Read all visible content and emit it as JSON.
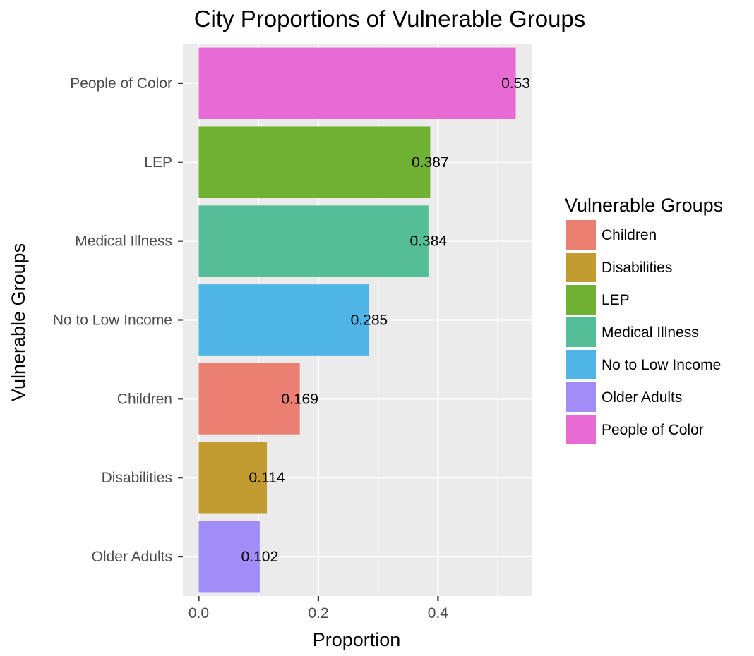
{
  "chart_data": {
    "type": "bar",
    "orientation": "horizontal",
    "title": "City Proportions of Vulnerable Groups",
    "xlabel": "Proportion",
    "ylabel": "Vulnerable Groups",
    "xlim": [
      -0.0265,
      0.5565
    ],
    "x_ticks": [
      "0.0",
      "0.2",
      "0.4"
    ],
    "x_tick_values": [
      0,
      0.2,
      0.4
    ],
    "grid": true,
    "panel_background": "#ebebeb",
    "categories": [
      "People of Color",
      "LEP",
      "Medical Illness",
      "No to Low Income",
      "Children",
      "Disabilities",
      "Older Adults"
    ],
    "values": [
      0.53,
      0.387,
      0.384,
      0.285,
      0.169,
      0.114,
      0.102
    ],
    "data_labels": [
      "0.53",
      "0.387",
      "0.384",
      "0.285",
      "0.169",
      "0.114",
      "0.102"
    ],
    "colors": [
      "#E76BD3",
      "#6FB132",
      "#53BE97",
      "#4FB4E6",
      "#EA7F72",
      "#C29B31",
      "#A28CF7"
    ],
    "legend": {
      "title": "Vulnerable Groups",
      "position": "right",
      "entries": [
        {
          "label": "Children",
          "color": "#EA7F72"
        },
        {
          "label": "Disabilities",
          "color": "#C29B31"
        },
        {
          "label": "LEP",
          "color": "#6FB132"
        },
        {
          "label": "Medical Illness",
          "color": "#53BE97"
        },
        {
          "label": "No to Low Income",
          "color": "#4FB4E6"
        },
        {
          "label": "Older Adults",
          "color": "#A28CF7"
        },
        {
          "label": "People of Color",
          "color": "#E76BD3"
        }
      ]
    }
  }
}
